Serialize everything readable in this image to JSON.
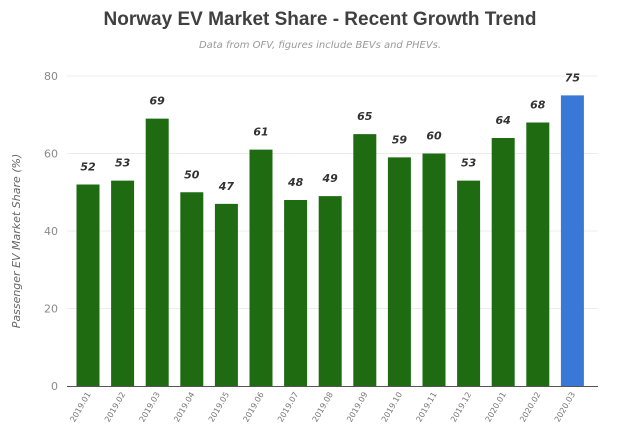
{
  "chart_data": {
    "type": "bar",
    "title": "Norway EV Market Share - Recent Growth Trend",
    "subtitle": "Data from OFV, figures include BEVs and PHEVs.",
    "ylabel": "Passenger EV Market Share (%)",
    "xlabel": "",
    "ylim": [
      0,
      80
    ],
    "yticks": [
      0,
      20,
      40,
      60,
      80
    ],
    "grid": true,
    "categories": [
      "2019.01",
      "2019.02",
      "2019.03",
      "2019.04",
      "2019.05",
      "2019.06",
      "2019.07",
      "2019.08",
      "2019.09",
      "2019.10",
      "2019.11",
      "2019.12",
      "2020.01",
      "2020.02",
      "2020.03"
    ],
    "values": [
      52,
      53,
      69,
      50,
      47,
      61,
      48,
      49,
      65,
      59,
      60,
      53,
      64,
      68,
      75
    ],
    "colors": {
      "bar": "#1e6b12",
      "highlight": "#3a78d8",
      "grid": "#ececec",
      "axis": "#555555"
    },
    "highlight_index": 14
  }
}
